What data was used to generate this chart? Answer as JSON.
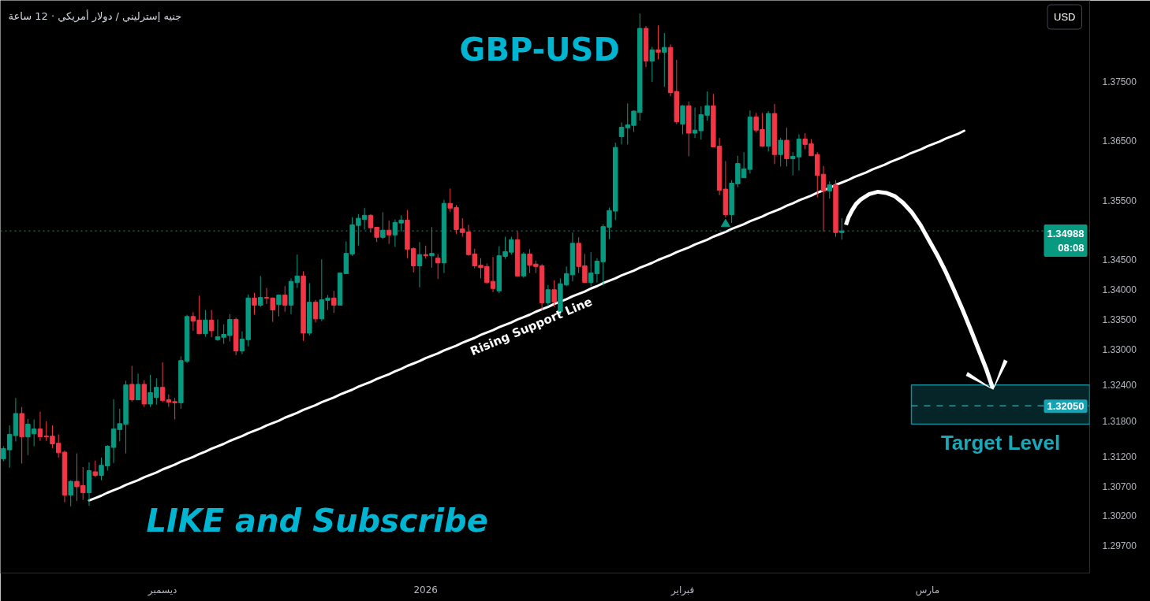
{
  "chart_data": {
    "type": "candlestick",
    "title": "GBP-USD",
    "subtitle": "جنيه إسترليني / دولار أمريكي · 12 ساعة",
    "annotations": [
      "LIKE and Subscribe",
      "USD"
    ],
    "categories": [
      null,
      null,
      null,
      null,
      null,
      null,
      null,
      null,
      null,
      null,
      null,
      null,
      null,
      null,
      null,
      null,
      null,
      null,
      null,
      null,
      null,
      null,
      null,
      null,
      null,
      null,
      "ديسمبر",
      null,
      null,
      null,
      null,
      null,
      null,
      null,
      null,
      null,
      null,
      null,
      null,
      null,
      null,
      null,
      null,
      null,
      null,
      null,
      null,
      null,
      null,
      null,
      null,
      null,
      null,
      null,
      null,
      null,
      null,
      null,
      null,
      null,
      null,
      null,
      null,
      null,
      null,
      null,
      null,
      null,
      null,
      "2026",
      null,
      null,
      null,
      null,
      null,
      null,
      null,
      null,
      null,
      null,
      null,
      null,
      null,
      null,
      null,
      null,
      null,
      null,
      null,
      null,
      null,
      null,
      null,
      null,
      null,
      null,
      null,
      null,
      null,
      null,
      null,
      null,
      null,
      null,
      null,
      null,
      null,
      null,
      null,
      null,
      null,
      "فبراير",
      null,
      null,
      null,
      null,
      null,
      null,
      null,
      null,
      null,
      null,
      null,
      null,
      null,
      null,
      null,
      null,
      null,
      null,
      null,
      null,
      null,
      null,
      null,
      null,
      null,
      null,
      null,
      null,
      null,
      null,
      null,
      null,
      null,
      null,
      null,
      null,
      null,
      null,
      null,
      "مارس",
      null,
      null,
      null,
      null,
      null,
      null,
      null,
      null,
      null,
      null,
      null,
      null,
      null,
      null,
      null,
      null,
      null,
      null,
      null,
      null,
      null,
      null,
      null,
      null,
      null,
      null
    ],
    "ohlc": [
      [
        1.3116,
        1.3137,
        1.3112,
        1.3133
      ],
      [
        1.3131,
        1.3172,
        1.3101,
        1.3157
      ],
      [
        1.3155,
        1.3218,
        1.3145,
        1.3192
      ],
      [
        1.3192,
        1.3203,
        1.3108,
        1.3153
      ],
      [
        1.3153,
        1.3183,
        1.3122,
        1.3174
      ],
      [
        1.3158,
        1.3182,
        1.3137,
        1.3166
      ],
      [
        1.3166,
        1.3195,
        1.3146,
        1.3153
      ],
      [
        1.3154,
        1.3179,
        1.3146,
        1.3153
      ],
      [
        1.3154,
        1.3172,
        1.3134,
        1.3141
      ],
      [
        1.3142,
        1.3157,
        1.3118,
        1.3126
      ],
      [
        1.3127,
        1.313,
        1.3043,
        1.3055
      ],
      [
        1.3055,
        1.308,
        1.3036,
        1.3078
      ],
      [
        1.3078,
        1.3125,
        1.3045,
        1.3069
      ],
      [
        1.3071,
        1.3102,
        1.3047,
        1.3059
      ],
      [
        1.3059,
        1.311,
        1.3037,
        1.3096
      ],
      [
        1.3094,
        1.3113,
        1.3085,
        1.3088
      ],
      [
        1.3088,
        1.3118,
        1.308,
        1.3105
      ],
      [
        1.3104,
        1.3139,
        1.3096,
        1.3137
      ],
      [
        1.3135,
        1.3216,
        1.3109,
        1.3166
      ],
      [
        1.3165,
        1.32,
        1.3145,
        1.3175
      ],
      [
        1.3174,
        1.3247,
        1.3125,
        1.324
      ],
      [
        1.3241,
        1.3272,
        1.3212,
        1.3215
      ],
      [
        1.3215,
        1.3259,
        1.3215,
        1.3241
      ],
      [
        1.3241,
        1.3248,
        1.3203,
        1.3208
      ],
      [
        1.3208,
        1.3257,
        1.3203,
        1.3227
      ],
      [
        1.3219,
        1.3251,
        1.3207,
        1.3236
      ],
      [
        1.3236,
        1.3278,
        1.3211,
        1.3214
      ],
      [
        1.3215,
        1.3224,
        1.3203,
        1.3211
      ],
      [
        1.3212,
        1.3218,
        1.3182,
        1.321
      ],
      [
        1.321,
        1.3288,
        1.32,
        1.3281
      ],
      [
        1.328,
        1.3358,
        1.3277,
        1.3355
      ],
      [
        1.3355,
        1.3362,
        1.3331,
        1.3347
      ],
      [
        1.3349,
        1.339,
        1.3325,
        1.3326
      ],
      [
        1.3326,
        1.3366,
        1.3321,
        1.3349
      ],
      [
        1.3349,
        1.3366,
        1.332,
        1.3331
      ],
      [
        1.3316,
        1.335,
        1.3314,
        1.3321
      ],
      [
        1.332,
        1.3342,
        1.3309,
        1.3325
      ],
      [
        1.3323,
        1.3359,
        1.3313,
        1.335
      ],
      [
        1.335,
        1.3353,
        1.329,
        1.3297
      ],
      [
        1.3297,
        1.333,
        1.3292,
        1.3317
      ],
      [
        1.3316,
        1.3392,
        1.3305,
        1.3386
      ],
      [
        1.3386,
        1.3395,
        1.3358,
        1.3374
      ],
      [
        1.3374,
        1.3423,
        1.3371,
        1.3387
      ],
      [
        1.3387,
        1.3403,
        1.3376,
        1.3386
      ],
      [
        1.3386,
        1.3387,
        1.3346,
        1.3366
      ],
      [
        1.3375,
        1.3392,
        1.3355,
        1.3391
      ],
      [
        1.3391,
        1.3406,
        1.3363,
        1.3374
      ],
      [
        1.3374,
        1.3419,
        1.3359,
        1.3414
      ],
      [
        1.3412,
        1.3459,
        1.3403,
        1.3423
      ],
      [
        1.3423,
        1.3431,
        1.3314,
        1.3327
      ],
      [
        1.3327,
        1.3411,
        1.3323,
        1.3379
      ],
      [
        1.3379,
        1.3383,
        1.3345,
        1.3351
      ],
      [
        1.3351,
        1.3451,
        1.3347,
        1.3383
      ],
      [
        1.3382,
        1.3391,
        1.3366,
        1.3386
      ],
      [
        1.3386,
        1.3398,
        1.3361,
        1.3374
      ],
      [
        1.3374,
        1.3428,
        1.3374,
        1.3428
      ],
      [
        1.3427,
        1.3481,
        1.3427,
        1.3461
      ],
      [
        1.346,
        1.3522,
        1.3457,
        1.3509
      ],
      [
        1.3508,
        1.3527,
        1.3474,
        1.352
      ],
      [
        1.3518,
        1.3537,
        1.3501,
        1.3525
      ],
      [
        1.3525,
        1.3527,
        1.3496,
        1.3504
      ],
      [
        1.3505,
        1.3505,
        1.348,
        1.3488
      ],
      [
        1.3488,
        1.353,
        1.3485,
        1.35
      ],
      [
        1.35,
        1.3516,
        1.3477,
        1.3492
      ],
      [
        1.3492,
        1.3518,
        1.3472,
        1.3513
      ],
      [
        1.3512,
        1.3525,
        1.3498,
        1.3517
      ],
      [
        1.3517,
        1.3534,
        1.3453,
        1.3468
      ],
      [
        1.3469,
        1.3471,
        1.3429,
        1.344
      ],
      [
        1.344,
        1.348,
        1.3404,
        1.3459
      ],
      [
        1.3459,
        1.3474,
        1.3452,
        1.3457
      ],
      [
        1.3457,
        1.3505,
        1.3437,
        1.3461
      ],
      [
        1.3453,
        1.346,
        1.3418,
        1.3445
      ],
      [
        1.3445,
        1.3551,
        1.3428,
        1.3545
      ],
      [
        1.3545,
        1.357,
        1.3531,
        1.3537
      ],
      [
        1.3538,
        1.3542,
        1.3494,
        1.3501
      ],
      [
        1.3502,
        1.352,
        1.3489,
        1.3496
      ],
      [
        1.3497,
        1.3509,
        1.3457,
        1.3459
      ],
      [
        1.346,
        1.3469,
        1.3436,
        1.344
      ],
      [
        1.3441,
        1.3453,
        1.3419,
        1.3437
      ],
      [
        1.3439,
        1.3444,
        1.341,
        1.3412
      ],
      [
        1.3414,
        1.3455,
        1.3396,
        1.3402
      ],
      [
        1.3398,
        1.3473,
        1.3394,
        1.3457
      ],
      [
        1.3456,
        1.3489,
        1.3452,
        1.3464
      ],
      [
        1.3463,
        1.3489,
        1.3459,
        1.3484
      ],
      [
        1.3484,
        1.3498,
        1.3423,
        1.3423
      ],
      [
        1.3423,
        1.3463,
        1.342,
        1.346
      ],
      [
        1.346,
        1.3468,
        1.3428,
        1.3441
      ],
      [
        1.3443,
        1.3449,
        1.3428,
        1.3439
      ],
      [
        1.344,
        1.3443,
        1.3366,
        1.3378
      ],
      [
        1.3378,
        1.3408,
        1.3374,
        1.34
      ],
      [
        1.34,
        1.3416,
        1.3371,
        1.3379
      ],
      [
        1.3363,
        1.3419,
        1.3357,
        1.341
      ],
      [
        1.3408,
        1.3439,
        1.3406,
        1.3427
      ],
      [
        1.3425,
        1.3496,
        1.3414,
        1.3478
      ],
      [
        1.3478,
        1.3488,
        1.3428,
        1.3439
      ],
      [
        1.344,
        1.346,
        1.3412,
        1.3412
      ],
      [
        1.3412,
        1.3463,
        1.3406,
        1.3428
      ],
      [
        1.3427,
        1.3453,
        1.3412,
        1.3448
      ],
      [
        1.3447,
        1.351,
        1.3407,
        1.3506
      ],
      [
        1.3505,
        1.3538,
        1.3485,
        1.3533
      ],
      [
        1.3532,
        1.3647,
        1.3517,
        1.3639
      ],
      [
        1.3657,
        1.3681,
        1.3644,
        1.3673
      ],
      [
        1.3672,
        1.3713,
        1.3644,
        1.3677
      ],
      [
        1.3676,
        1.3701,
        1.3665,
        1.37
      ],
      [
        1.3698,
        1.3864,
        1.3684,
        1.3839
      ],
      [
        1.3839,
        1.3843,
        1.3774,
        1.3784
      ],
      [
        1.3784,
        1.3808,
        1.3749,
        1.3803
      ],
      [
        1.3803,
        1.3844,
        1.3787,
        1.3799
      ],
      [
        1.3799,
        1.3831,
        1.3741,
        1.3807
      ],
      [
        1.3807,
        1.3812,
        1.3725,
        1.3731
      ],
      [
        1.3733,
        1.3786,
        1.3678,
        1.3682
      ],
      [
        1.3678,
        1.371,
        1.3661,
        1.3709
      ],
      [
        1.3709,
        1.3716,
        1.3624,
        1.3663
      ],
      [
        1.3663,
        1.3706,
        1.3655,
        1.3668
      ],
      [
        1.3667,
        1.3708,
        1.3652,
        1.3694
      ],
      [
        1.3693,
        1.3733,
        1.3684,
        1.3709
      ],
      [
        1.3709,
        1.3729,
        1.364,
        1.364
      ],
      [
        1.3641,
        1.3655,
        1.3559,
        1.3567
      ],
      [
        1.3569,
        1.3616,
        1.3521,
        1.3526
      ],
      [
        1.3526,
        1.3584,
        1.3512,
        1.3579
      ],
      [
        1.3578,
        1.3625,
        1.3572,
        1.3612
      ],
      [
        1.3588,
        1.3631,
        1.3588,
        1.3603
      ],
      [
        1.3602,
        1.3701,
        1.3595,
        1.369
      ],
      [
        1.369,
        1.3697,
        1.3664,
        1.3668
      ],
      [
        1.3669,
        1.3697,
        1.364,
        1.3641
      ],
      [
        1.3641,
        1.37,
        1.3632,
        1.3696
      ],
      [
        1.3696,
        1.3712,
        1.3611,
        1.3627
      ],
      [
        1.3627,
        1.3655,
        1.3607,
        1.3651
      ],
      [
        1.3651,
        1.3672,
        1.3607,
        1.362
      ],
      [
        1.362,
        1.3631,
        1.3592,
        1.3624
      ],
      [
        1.3623,
        1.3661,
        1.36,
        1.3653
      ],
      [
        1.3653,
        1.3663,
        1.3636,
        1.3644
      ],
      [
        1.3645,
        1.3653,
        1.3625,
        1.3625
      ],
      [
        1.3627,
        1.3631,
        1.3555,
        1.3592
      ],
      [
        1.3594,
        1.3608,
        1.3498,
        1.3566
      ],
      [
        1.3566,
        1.3582,
        1.3553,
        1.3576
      ],
      [
        1.3576,
        1.3584,
        1.3489,
        1.3496
      ],
      [
        1.3496,
        1.352,
        1.3484,
        1.34988
      ],
      null,
      null,
      null,
      null,
      null,
      null,
      null,
      null,
      null,
      null,
      null,
      null,
      null,
      null,
      null,
      null,
      null,
      null,
      null,
      null,
      null,
      null,
      null,
      null,
      null,
      null,
      null,
      null,
      null,
      null,
      null,
      null,
      null,
      null,
      null,
      null,
      null,
      null,
      null,
      null
    ],
    "colors": [
      "#089981",
      "#089981",
      "#089981",
      "#f23645",
      "#089981",
      "#089981",
      "#f23645",
      "#f23645",
      "#f23645",
      "#f23645",
      "#f23645",
      "#089981",
      "#f23645",
      "#f23645",
      "#089981",
      "#f23645",
      "#089981",
      "#089981",
      "#089981",
      "#089981",
      "#089981",
      "#f23645",
      "#089981",
      "#f23645",
      "#089981",
      "#089981",
      "#f23645",
      "#f23645",
      "#f23645",
      "#089981",
      "#089981",
      "#f23645",
      "#f23645",
      "#089981",
      "#f23645",
      "#089981",
      "#089981",
      "#089981",
      "#f23645",
      "#089981",
      "#089981",
      "#f23645",
      "#089981",
      "#f23645",
      "#f23645",
      "#089981",
      "#f23645",
      "#089981",
      "#089981",
      "#f23645",
      "#089981",
      "#f23645",
      "#089981",
      "#089981",
      "#f23645",
      "#089981",
      "#089981",
      "#089981",
      "#089981",
      "#089981",
      "#f23645",
      "#f23645",
      "#089981",
      "#f23645",
      "#089981",
      "#089981",
      "#f23645",
      "#f23645",
      "#089981",
      "#f23645",
      "#089981",
      "#f23645",
      "#089981",
      "#f23645",
      "#f23645",
      "#f23645",
      "#f23645",
      "#f23645",
      "#f23645",
      "#f23645",
      "#f23645",
      "#089981",
      "#089981",
      "#089981",
      "#f23645",
      "#089981",
      "#f23645",
      "#f23645",
      "#f23645",
      "#089981",
      "#f23645",
      "#089981",
      "#089981",
      "#089981",
      "#f23645",
      "#f23645",
      "#089981",
      "#089981",
      "#089981",
      "#089981",
      "#089981",
      "#089981",
      "#089981",
      "#089981",
      "#089981",
      "#f23645",
      "#089981",
      "#f23645",
      "#089981",
      "#f23645",
      "#f23645",
      "#089981",
      "#f23645",
      "#089981",
      "#089981",
      "#089981",
      "#f23645",
      "#f23645",
      "#f23645",
      "#089981",
      "#089981",
      "#089981",
      "#089981",
      "#f23645",
      "#f23645",
      "#089981",
      "#f23645",
      "#089981",
      "#f23645",
      "#089981",
      "#089981",
      "#f23645",
      "#f23645",
      "#f23645",
      "#f23645",
      "#089981",
      "#f23645",
      "#089981",
      null,
      null,
      null,
      null,
      null,
      null,
      null,
      null,
      null,
      null,
      null,
      null,
      null,
      null,
      null,
      null,
      null,
      null,
      null,
      null,
      null,
      null,
      null,
      null,
      null,
      null,
      null,
      null,
      null,
      null,
      null,
      null,
      null,
      null,
      null,
      null,
      null,
      null,
      null,
      null
    ],
    "ylim": [
      1.2924,
      1.3886
    ],
    "yticks": [
      {
        "value": 1.297,
        "label": "1.29700"
      },
      {
        "value": 1.302,
        "label": "1.30200"
      },
      {
        "value": 1.307,
        "label": "1.30700"
      },
      {
        "value": 1.312,
        "label": "1.31200"
      },
      {
        "value": 1.318,
        "label": "1.31800"
      },
      {
        "value": 1.324,
        "label": "1.32400"
      },
      {
        "value": 1.33,
        "label": "1.33000"
      },
      {
        "value": 1.335,
        "label": "1.33500"
      },
      {
        "value": 1.34,
        "label": "1.34000"
      },
      {
        "value": 1.345,
        "label": "1.34500"
      },
      {
        "value": 1.355,
        "label": "1.35500"
      },
      {
        "value": 1.365,
        "label": "1.36500"
      },
      {
        "value": 1.375,
        "label": "1.37500"
      }
    ],
    "series": [
      {
        "type": "line",
        "name": "Rising Support Line",
        "color": "#ffffff",
        "values": [
          null,
          null,
          null,
          null,
          null,
          null,
          null,
          null,
          null,
          null,
          null,
          null,
          null,
          null,
          1.3046,
          1.305,
          1.3054,
          1.3059,
          1.3063,
          1.3067,
          1.3072,
          1.3076,
          1.308,
          1.3085,
          1.3089,
          1.3093,
          1.3098,
          1.3102,
          1.3106,
          1.3111,
          1.3115,
          1.3119,
          1.3124,
          1.3128,
          1.3133,
          1.3137,
          1.3141,
          1.3146,
          1.315,
          1.3154,
          1.3159,
          1.3163,
          1.3167,
          1.3172,
          1.3176,
          1.318,
          1.3185,
          1.3189,
          1.3193,
          1.3198,
          1.3202,
          1.3206,
          1.3211,
          1.3215,
          1.3219,
          1.3224,
          1.3228,
          1.3232,
          1.3237,
          1.3241,
          1.3245,
          1.325,
          1.3254,
          1.3258,
          1.3263,
          1.3267,
          1.3272,
          1.3276,
          1.328,
          1.3285,
          1.3289,
          1.3293,
          1.3298,
          1.3302,
          1.3306,
          1.3311,
          1.3315,
          1.3319,
          1.3324,
          1.3328,
          1.3332,
          1.3337,
          1.3341,
          1.3345,
          1.335,
          1.3354,
          1.3358,
          1.3363,
          1.3367,
          1.3371,
          1.3376,
          1.338,
          1.3384,
          1.3389,
          1.3393,
          1.3397,
          1.3402,
          1.3406,
          1.3411,
          1.3415,
          1.3419,
          1.3424,
          1.3428,
          1.3432,
          1.3437,
          1.3441,
          1.3445,
          1.345,
          1.3454,
          1.3458,
          1.3463,
          1.3467,
          1.3471,
          1.3476,
          1.348,
          1.3484,
          1.3489,
          1.3493,
          1.3497,
          1.3502,
          1.3506,
          1.351,
          1.3515,
          1.3519,
          1.3523,
          1.3528,
          1.3532,
          1.3536,
          1.3541,
          1.3545,
          1.355,
          1.3554,
          1.3558,
          1.3563,
          1.3567,
          1.3571,
          1.3576,
          1.358,
          1.3584,
          1.3589,
          1.3593,
          1.3597,
          1.3602,
          1.3606,
          1.361,
          1.3615,
          1.3619,
          1.3623,
          1.3628,
          1.3632,
          1.3636,
          1.3641,
          1.3645,
          1.3649,
          1.3654,
          1.3658,
          1.3662,
          1.3667,
          null,
          null,
          null,
          null,
          null,
          null,
          null,
          null,
          null,
          null,
          null,
          null,
          null,
          null,
          null,
          null,
          null,
          null,
          null,
          null
        ]
      },
      {
        "type": "scatter",
        "color": "#089981",
        "marker": "triangle",
        "values": [
          null,
          null,
          null,
          null,
          null,
          null,
          null,
          null,
          null,
          null,
          null,
          null,
          null,
          null,
          null,
          null,
          null,
          null,
          null,
          null,
          null,
          null,
          null,
          null,
          null,
          null,
          null,
          null,
          null,
          null,
          null,
          null,
          null,
          null,
          null,
          null,
          null,
          null,
          null,
          null,
          null,
          null,
          null,
          null,
          null,
          null,
          null,
          null,
          null,
          null,
          null,
          null,
          null,
          null,
          null,
          null,
          null,
          null,
          null,
          null,
          null,
          null,
          null,
          null,
          null,
          null,
          null,
          null,
          null,
          null,
          null,
          null,
          null,
          null,
          null,
          null,
          null,
          null,
          null,
          null,
          null,
          null,
          null,
          null,
          null,
          null,
          null,
          null,
          null,
          null,
          null,
          null,
          null,
          null,
          null,
          null,
          null,
          null,
          null,
          null,
          null,
          null,
          null,
          null,
          null,
          null,
          null,
          null,
          null,
          null,
          null,
          null,
          null,
          null,
          null,
          null,
          null,
          null,
          1.351,
          null,
          null,
          null,
          null,
          null,
          null,
          null,
          null,
          null,
          null,
          null,
          null,
          null,
          null,
          null,
          null,
          null,
          null,
          null,
          null,
          null,
          null,
          null,
          null,
          null,
          null,
          null,
          null,
          null,
          null,
          null,
          null,
          null,
          null,
          null,
          null,
          null,
          null,
          null,
          null,
          null,
          null,
          null,
          null,
          null,
          null,
          null,
          null,
          null,
          null,
          null,
          null,
          null,
          null,
          null,
          null,
          null,
          null,
          null
        ]
      }
    ],
    "ref_lines": [
      {
        "axis": "y",
        "value": 1.34988,
        "label": "1.34988\n08:08",
        "color": "#089981",
        "line_style": "dotted"
      },
      {
        "axis": "y",
        "value": 1.3205,
        "label": "1.32050",
        "color": "#17a2b4",
        "line_style": "dashed"
      }
    ],
    "bands": [
      {
        "axis": "y",
        "from": 1.3174,
        "to": 1.324,
        "label": "Target Level",
        "color": "#1aa8b8"
      }
    ]
  }
}
